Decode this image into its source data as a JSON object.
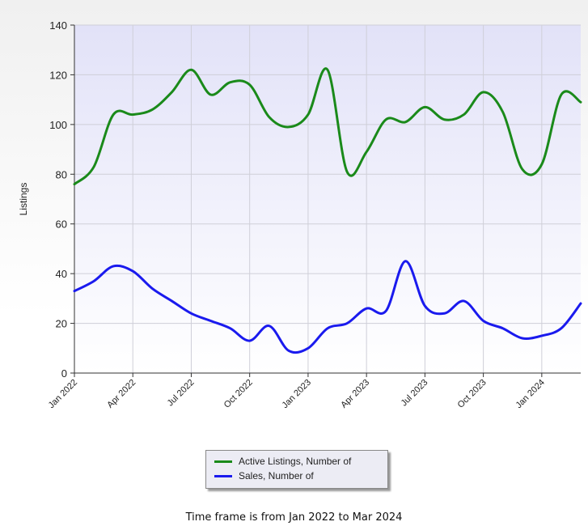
{
  "chart_data": {
    "type": "line",
    "ylabel": "Listings",
    "xlabel": "",
    "ylim": [
      0,
      140
    ],
    "yticks": [
      0,
      20,
      40,
      60,
      80,
      100,
      120,
      140
    ],
    "xlim": [
      0,
      26
    ],
    "xticks": [
      {
        "label": "Jan 2022",
        "x": 0
      },
      {
        "label": "Apr 2022",
        "x": 3
      },
      {
        "label": "Jul 2022",
        "x": 6
      },
      {
        "label": "Oct 2022",
        "x": 9
      },
      {
        "label": "Jan 2023",
        "x": 12
      },
      {
        "label": "Apr 2023",
        "x": 15
      },
      {
        "label": "Jul 2023",
        "x": 18
      },
      {
        "label": "Oct 2023",
        "x": 21
      },
      {
        "label": "Jan 2024",
        "x": 24
      }
    ],
    "x": [
      "Jan 2022",
      "Feb 2022",
      "Mar 2022",
      "Apr 2022",
      "May 2022",
      "Jun 2022",
      "Jul 2022",
      "Aug 2022",
      "Sep 2022",
      "Oct 2022",
      "Nov 2022",
      "Dec 2022",
      "Jan 2023",
      "Feb 2023",
      "Mar 2023",
      "Apr 2023",
      "May 2023",
      "Jun 2023",
      "Jul 2023",
      "Aug 2023",
      "Sep 2023",
      "Oct 2023",
      "Nov 2023",
      "Dec 2023",
      "Jan 2024",
      "Feb 2024",
      "Mar 2024"
    ],
    "grid": true,
    "legend_position": "bottom-center",
    "series": [
      {
        "name": "Active Listings, Number of",
        "color": "#1a8a1a",
        "values": [
          76,
          83,
          104,
          104,
          106,
          113,
          122,
          112,
          117,
          116,
          103,
          99,
          104,
          122,
          81,
          89,
          102,
          101,
          107,
          102,
          104,
          113,
          105,
          82,
          84,
          112,
          109
        ]
      },
      {
        "name": "Sales, Number of",
        "color": "#1a1aee",
        "values": [
          33,
          37,
          43,
          41,
          34,
          29,
          24,
          21,
          18,
          13,
          19,
          9,
          10,
          18,
          20,
          26,
          25,
          45,
          27,
          24,
          29,
          21,
          18,
          14,
          15,
          18,
          28
        ]
      }
    ]
  },
  "caption": "Time frame is from Jan 2022 to Mar 2024"
}
